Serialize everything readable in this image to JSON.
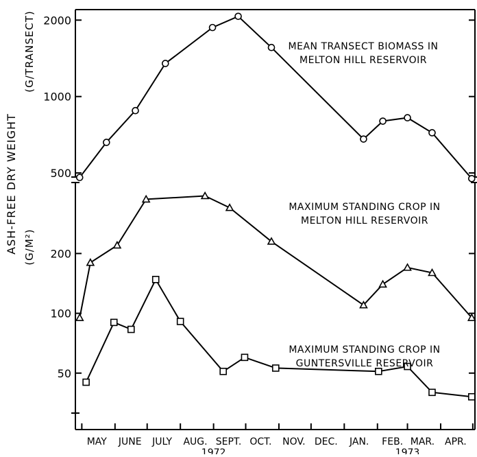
{
  "chart_data": {
    "type": "line",
    "ylabel": "ASH-FREE DRY WEIGHT",
    "x_months": [
      "MAY",
      "JUNE",
      "JULY",
      "AUG.",
      "SEPT.",
      "OCT.",
      "NOV.",
      "DEC.",
      "JAN.",
      "FEB.",
      "MAR.",
      "APR."
    ],
    "x_years": [
      "1972",
      "1973"
    ],
    "y_scale": "log",
    "panels": [
      {
        "unit_label": "(G/TRANSECT)",
        "ylim": [
          470,
          2200
        ],
        "ticks": [
          {
            "value": 2000,
            "label": "2000"
          },
          {
            "value": 1000,
            "label": "1000"
          },
          {
            "value": 500,
            "label": "500"
          }
        ]
      },
      {
        "unit_label": "(G/M²)",
        "ylim": [
          33,
          470
        ],
        "ticks": [
          {
            "value": 200,
            "label": "200"
          },
          {
            "value": 100,
            "label": "100"
          },
          {
            "value": 50,
            "label": "50"
          }
        ]
      }
    ],
    "series": [
      {
        "name": "MEAN TRANSECT BIOMASS IN MELTON HILL RESERVOIR",
        "label_lines": [
          "MEAN TRANSECT BIOMASS IN",
          "MELTON HILL RESERVOIR"
        ],
        "marker": "circle",
        "panel": 0,
        "points": [
          {
            "date": "1972-04-29",
            "value": 480
          },
          {
            "date": "1972-05-24",
            "value": 660
          },
          {
            "date": "1972-06-20",
            "value": 880
          },
          {
            "date": "1972-07-18",
            "value": 1350
          },
          {
            "date": "1972-08-31",
            "value": 1870
          },
          {
            "date": "1972-09-24",
            "value": 2070
          },
          {
            "date": "1972-10-25",
            "value": 1560
          },
          {
            "date": "1973-01-19",
            "value": 680
          },
          {
            "date": "1973-02-06",
            "value": 800
          },
          {
            "date": "1973-03-01",
            "value": 825
          },
          {
            "date": "1973-03-24",
            "value": 720
          },
          {
            "date": "1973-04-30",
            "value": 475
          }
        ]
      },
      {
        "name": "MAXIMUM STANDING CROP IN MELTON HILL RESERVOIR",
        "label_lines": [
          "MAXIMUM STANDING CROP IN",
          "MELTON HILL RESERVOIR"
        ],
        "marker": "triangle",
        "panel": 1,
        "points": [
          {
            "date": "1972-04-29",
            "value": 95
          },
          {
            "date": "1972-05-09",
            "value": 180
          },
          {
            "date": "1972-06-03",
            "value": 220
          },
          {
            "date": "1972-06-30",
            "value": 375
          },
          {
            "date": "1972-08-24",
            "value": 390
          },
          {
            "date": "1972-09-16",
            "value": 340
          },
          {
            "date": "1972-10-25",
            "value": 230
          },
          {
            "date": "1973-01-19",
            "value": 110
          },
          {
            "date": "1973-02-06",
            "value": 140
          },
          {
            "date": "1973-03-01",
            "value": 170
          },
          {
            "date": "1973-03-24",
            "value": 160
          },
          {
            "date": "1973-04-30",
            "value": 95
          }
        ]
      },
      {
        "name": "MAXIMUM STANDING CROP IN GUNTERSVILLE RESERVOIR",
        "label_lines": [
          "MAXIMUM STANDING CROP IN",
          "GUNTERSVILLE RESERVOIR"
        ],
        "marker": "square",
        "panel": 1,
        "points": [
          {
            "date": "1972-05-05",
            "value": 45
          },
          {
            "date": "1972-05-31",
            "value": 90
          },
          {
            "date": "1972-06-16",
            "value": 83
          },
          {
            "date": "1972-07-09",
            "value": 148
          },
          {
            "date": "1972-08-01",
            "value": 91
          },
          {
            "date": "1972-09-10",
            "value": 51
          },
          {
            "date": "1972-09-30",
            "value": 60
          },
          {
            "date": "1972-10-29",
            "value": 53
          },
          {
            "date": "1973-02-02",
            "value": 51
          },
          {
            "date": "1973-03-01",
            "value": 54
          },
          {
            "date": "1973-03-24",
            "value": 40
          },
          {
            "date": "1973-04-30",
            "value": 38
          }
        ]
      }
    ]
  }
}
